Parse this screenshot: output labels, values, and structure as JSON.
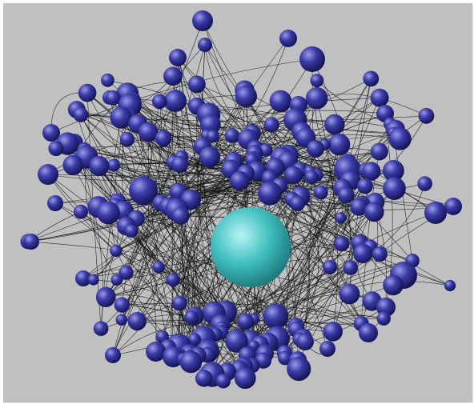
{
  "scene": {
    "background": "#c0c0c0",
    "edge_color": "#111111",
    "node_color": "#3a3aa8",
    "node_highlight": "#9a9ae8",
    "node_shadow": "#141450",
    "center_color": "#3fbfbf",
    "center_highlight": "#b8f4f4",
    "center_shadow": "#1a6f73",
    "node_count": 230,
    "edge_count": 520,
    "central_node_label": "",
    "caption": ""
  }
}
